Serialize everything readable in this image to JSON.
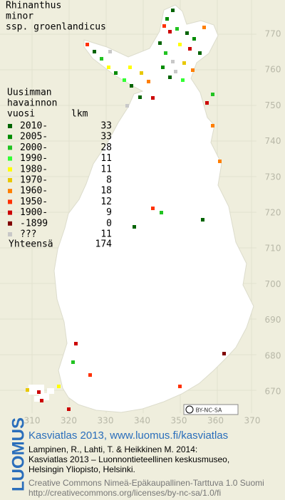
{
  "map_title": [
    "Rhinanthus",
    "minor",
    "ssp. groenlandicus"
  ],
  "legend": {
    "header": [
      "Uusimman",
      "havainnon"
    ],
    "columns": [
      "vuosi",
      "lkm"
    ],
    "rows": [
      {
        "label": "2010-",
        "count": 33,
        "color": "#006400"
      },
      {
        "label": "2005-",
        "count": 33,
        "color": "#008c00"
      },
      {
        "label": "2000-",
        "count": 28,
        "color": "#22c322"
      },
      {
        "label": "1990-",
        "count": 11,
        "color": "#33ff33"
      },
      {
        "label": "1980-",
        "count": 11,
        "color": "#ffff00"
      },
      {
        "label": "1970-",
        "count": 8,
        "color": "#e8c800"
      },
      {
        "label": "1960-",
        "count": 18,
        "color": "#ff7f00"
      },
      {
        "label": "1950-",
        "count": 12,
        "color": "#ff3000"
      },
      {
        "label": "1900-",
        "count": 9,
        "color": "#cc0000"
      },
      {
        "label": "-1899",
        "count": 0,
        "color": "#800000"
      },
      {
        "label": "???",
        "count": 11,
        "color": "#c8c8c8"
      }
    ],
    "total": {
      "label": "Yhteensä",
      "count": 174
    }
  },
  "grid_labels": {
    "north": [
      770,
      760,
      750,
      740,
      730,
      720,
      710,
      700,
      690,
      680,
      670
    ],
    "east": [
      310,
      320,
      330,
      340,
      350,
      360,
      370
    ]
  },
  "badge": "BY-NC-SA",
  "footer": {
    "logo": "LUOMUS",
    "heading": "Kasviatlas 2013, www.luomus.fi/kasviatlas",
    "citation": [
      "Lampinen, R., Lahti, T. & Heikkinen M. 2014:",
      "Kasviatlas 2013 – Luonnontieteellinen keskusmuseo,",
      "Helsingin Yliopisto, Helsinki."
    ],
    "license": [
      "Creative Commons Nimeä-Epäkaupallinen-Tarttuva 1.0 Suomi",
      "http://creativecommons.org/licenses/by-nc-sa/1.0/fi"
    ]
  }
}
